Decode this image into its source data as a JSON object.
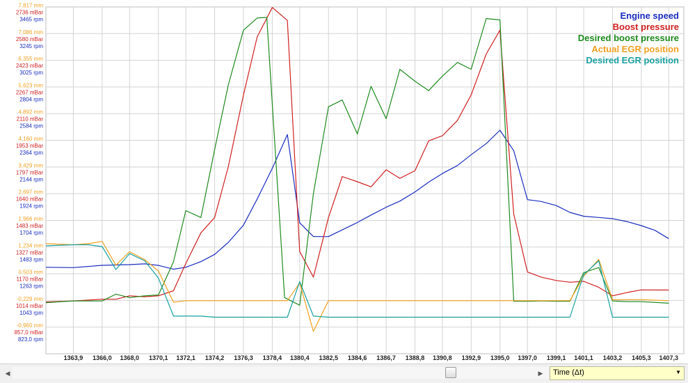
{
  "chart_data": {
    "type": "line",
    "x_ticks": [
      "1363,9",
      "1366,0",
      "1368,0",
      "1370,1",
      "1372,1",
      "1374,2",
      "1376,3",
      "1378,4",
      "1380,4",
      "1382,5",
      "1384,6",
      "1386,7",
      "1388,8",
      "1390,8",
      "1392,9",
      "1395,0",
      "1397,0",
      "1399,1",
      "1401,1",
      "1403,2",
      "1405,3",
      "1407,3"
    ],
    "xlim": [
      1361.9,
      1408.4
    ],
    "y_axes": [
      {
        "name": "EGR position",
        "unit": "mm",
        "color": "#f0a020",
        "ylim": [
          -1.682,
          7.817
        ],
        "ticks": [
          "7,817 mm",
          "7,086 mm",
          "6,355 mm",
          "5,623 mm",
          "4,892 mm",
          "4,160 mm",
          "3,429 mm",
          "2,697 mm",
          "1,966 mm",
          "1,234 mm",
          "0,503 mm",
          "-0,229 mm",
          "-0,960 mm"
        ]
      },
      {
        "name": "Boost pressure",
        "unit": "mBar",
        "color": "#d02020",
        "ylim": [
          700.0,
          2736.0
        ],
        "ticks": [
          "2736 mBar",
          "2580 mBar",
          "2423 mBar",
          "2267 mBar",
          "2110 mBar",
          "1953 mBar",
          "1797 mBar",
          "1640 mBar",
          "1483 mBar",
          "1327 mBar",
          "1170 mBar",
          "1014 mBar",
          "857,0 mBar"
        ]
      },
      {
        "name": "Engine speed",
        "unit": "rpm",
        "color": "#1a2dbf",
        "ylim": [
          823.0,
          3465.0
        ],
        "ticks": [
          "3465 rpm",
          "3245 rpm",
          "3025 rpm",
          "2804 rpm",
          "2584 rpm",
          "2364 rpm",
          "2144 rpm",
          "1924 rpm",
          "1704 rpm",
          "1483 rpm",
          "1263 rpm",
          "1043 rpm",
          "823,0 rpm"
        ]
      }
    ],
    "legend_position": "top-right",
    "grid": true,
    "series": [
      {
        "name": "Engine speed",
        "color": "#1a2dbf",
        "axis": 2,
        "points": [
          [
            1361.9,
            1482
          ],
          [
            1363.9,
            1479
          ],
          [
            1366.0,
            1497
          ],
          [
            1368.0,
            1502
          ],
          [
            1369.1,
            1508
          ],
          [
            1370.1,
            1496
          ],
          [
            1371.2,
            1467
          ],
          [
            1372.1,
            1482
          ],
          [
            1373.2,
            1525
          ],
          [
            1374.2,
            1580
          ],
          [
            1375.2,
            1672
          ],
          [
            1376.3,
            1803
          ],
          [
            1377.3,
            2002
          ],
          [
            1378.4,
            2236
          ],
          [
            1379.5,
            2493
          ],
          [
            1380.4,
            1821
          ],
          [
            1381.4,
            1716
          ],
          [
            1382.5,
            1716
          ],
          [
            1383.5,
            1767
          ],
          [
            1384.6,
            1823
          ],
          [
            1385.6,
            1880
          ],
          [
            1386.7,
            1939
          ],
          [
            1387.7,
            1986
          ],
          [
            1388.8,
            2056
          ],
          [
            1389.8,
            2130
          ],
          [
            1390.8,
            2196
          ],
          [
            1391.9,
            2257
          ],
          [
            1392.9,
            2339
          ],
          [
            1394.0,
            2424
          ],
          [
            1395.0,
            2526
          ],
          [
            1396.0,
            2370
          ],
          [
            1397.0,
            1997
          ],
          [
            1398.0,
            1983
          ],
          [
            1399.1,
            1952
          ],
          [
            1400.1,
            1900
          ],
          [
            1401.1,
            1871
          ],
          [
            1402.2,
            1861
          ],
          [
            1403.2,
            1852
          ],
          [
            1404.3,
            1829
          ],
          [
            1405.3,
            1799
          ],
          [
            1406.3,
            1763
          ],
          [
            1407.3,
            1700
          ]
        ]
      },
      {
        "name": "Boost pressure",
        "color": "#d02020",
        "axis": 1,
        "points": [
          [
            1361.9,
            1004
          ],
          [
            1363.9,
            1010
          ],
          [
            1366.0,
            1020
          ],
          [
            1367.0,
            1020
          ],
          [
            1368.0,
            1040
          ],
          [
            1369.1,
            1035
          ],
          [
            1370.1,
            1040
          ],
          [
            1371.2,
            1070
          ],
          [
            1372.1,
            1230
          ],
          [
            1373.2,
            1410
          ],
          [
            1374.2,
            1500
          ],
          [
            1375.2,
            1800
          ],
          [
            1376.3,
            2220
          ],
          [
            1377.3,
            2560
          ],
          [
            1378.4,
            2733
          ],
          [
            1379.5,
            2657
          ],
          [
            1380.4,
            1300
          ],
          [
            1381.4,
            1150
          ],
          [
            1382.5,
            1500
          ],
          [
            1383.5,
            1740
          ],
          [
            1384.6,
            1710
          ],
          [
            1385.6,
            1680
          ],
          [
            1386.7,
            1780
          ],
          [
            1387.7,
            1730
          ],
          [
            1388.8,
            1775
          ],
          [
            1389.8,
            1950
          ],
          [
            1390.8,
            1980
          ],
          [
            1391.9,
            2070
          ],
          [
            1392.9,
            2220
          ],
          [
            1394.0,
            2460
          ],
          [
            1395.0,
            2600
          ],
          [
            1396.0,
            1520
          ],
          [
            1397.0,
            1180
          ],
          [
            1398.0,
            1150
          ],
          [
            1399.1,
            1130
          ],
          [
            1400.1,
            1120
          ],
          [
            1401.1,
            1125
          ],
          [
            1402.2,
            1090
          ],
          [
            1403.2,
            1040
          ],
          [
            1404.3,
            1060
          ],
          [
            1405.3,
            1075
          ],
          [
            1407.3,
            1074
          ]
        ]
      },
      {
        "name": "Desired boost pressure",
        "color": "#1e8a1e",
        "axis": 1,
        "points": [
          [
            1361.9,
            1000
          ],
          [
            1363.9,
            1010
          ],
          [
            1366.0,
            1010
          ],
          [
            1367.0,
            1050
          ],
          [
            1368.0,
            1030
          ],
          [
            1369.1,
            1040
          ],
          [
            1370.1,
            1045
          ],
          [
            1371.2,
            1240
          ],
          [
            1372.1,
            1540
          ],
          [
            1373.2,
            1500
          ],
          [
            1374.2,
            1900
          ],
          [
            1375.2,
            2280
          ],
          [
            1376.3,
            2600
          ],
          [
            1377.3,
            2671
          ],
          [
            1378.0,
            2675
          ],
          [
            1379.3,
            1030
          ],
          [
            1380.4,
            985
          ],
          [
            1381.4,
            1640
          ],
          [
            1382.5,
            2150
          ],
          [
            1383.5,
            2190
          ],
          [
            1384.6,
            1990
          ],
          [
            1385.6,
            2270
          ],
          [
            1386.7,
            2080
          ],
          [
            1387.7,
            2370
          ],
          [
            1388.8,
            2300
          ],
          [
            1389.8,
            2245
          ],
          [
            1390.8,
            2330
          ],
          [
            1391.9,
            2410
          ],
          [
            1392.9,
            2370
          ],
          [
            1394.0,
            2668
          ],
          [
            1395.0,
            2660
          ],
          [
            1396.0,
            1008
          ],
          [
            1397.0,
            1008
          ],
          [
            1398.0,
            1010
          ],
          [
            1399.1,
            1008
          ],
          [
            1400.1,
            1008
          ],
          [
            1401.1,
            1176
          ],
          [
            1402.2,
            1206
          ],
          [
            1403.2,
            1010
          ],
          [
            1404.3,
            1006
          ],
          [
            1405.3,
            1006
          ],
          [
            1407.3,
            997
          ]
        ]
      },
      {
        "name": "Actual EGR position",
        "color": "#f0a020",
        "axis": 0,
        "points": [
          [
            1361.9,
            1.334
          ],
          [
            1363.9,
            1.304
          ],
          [
            1365.0,
            1.334
          ],
          [
            1366.0,
            1.394
          ],
          [
            1367.0,
            0.745
          ],
          [
            1368.0,
            1.113
          ],
          [
            1369.1,
            0.894
          ],
          [
            1370.1,
            0.585
          ],
          [
            1371.2,
            -0.271
          ],
          [
            1372.1,
            -0.229
          ],
          [
            1373.2,
            -0.229
          ],
          [
            1374.2,
            -0.229
          ],
          [
            1375.2,
            -0.229
          ],
          [
            1376.3,
            -0.229
          ],
          [
            1377.3,
            -0.229
          ],
          [
            1378.4,
            -0.229
          ],
          [
            1379.5,
            -0.229
          ],
          [
            1380.4,
            0.26
          ],
          [
            1381.4,
            -1.07
          ],
          [
            1382.5,
            -0.229
          ],
          [
            1383.5,
            -0.229
          ],
          [
            1384.6,
            -0.229
          ],
          [
            1385.6,
            -0.229
          ],
          [
            1386.7,
            -0.229
          ],
          [
            1387.7,
            -0.229
          ],
          [
            1388.8,
            -0.229
          ],
          [
            1389.8,
            -0.229
          ],
          [
            1390.8,
            -0.229
          ],
          [
            1391.9,
            -0.229
          ],
          [
            1392.9,
            -0.229
          ],
          [
            1394.0,
            -0.229
          ],
          [
            1395.0,
            -0.229
          ],
          [
            1396.0,
            -0.229
          ],
          [
            1397.0,
            -0.229
          ],
          [
            1398.0,
            -0.229
          ],
          [
            1399.1,
            -0.229
          ],
          [
            1400.1,
            -0.229
          ],
          [
            1401.1,
            0.443
          ],
          [
            1402.2,
            0.904
          ],
          [
            1403.2,
            -0.199
          ],
          [
            1404.3,
            -0.199
          ],
          [
            1405.3,
            -0.199
          ],
          [
            1407.3,
            -0.229
          ]
        ]
      },
      {
        "name": "Desired EGR position",
        "color": "#1aa0a0",
        "axis": 0,
        "points": [
          [
            1361.9,
            1.275
          ],
          [
            1363.9,
            1.304
          ],
          [
            1365.0,
            1.304
          ],
          [
            1366.0,
            1.254
          ],
          [
            1367.0,
            0.624
          ],
          [
            1368.0,
            1.063
          ],
          [
            1369.1,
            0.864
          ],
          [
            1370.1,
            0.394
          ],
          [
            1371.2,
            -0.65
          ],
          [
            1372.1,
            -0.65
          ],
          [
            1373.2,
            -0.65
          ],
          [
            1374.2,
            -0.68
          ],
          [
            1375.2,
            -0.68
          ],
          [
            1376.3,
            -0.68
          ],
          [
            1377.3,
            -0.68
          ],
          [
            1378.4,
            -0.68
          ],
          [
            1379.5,
            -0.68
          ],
          [
            1380.4,
            0.294
          ],
          [
            1381.4,
            -0.65
          ],
          [
            1382.5,
            -0.68
          ],
          [
            1383.5,
            -0.68
          ],
          [
            1384.6,
            -0.68
          ],
          [
            1385.6,
            -0.68
          ],
          [
            1386.7,
            -0.68
          ],
          [
            1387.7,
            -0.68
          ],
          [
            1388.8,
            -0.68
          ],
          [
            1389.8,
            -0.68
          ],
          [
            1390.8,
            -0.68
          ],
          [
            1391.9,
            -0.68
          ],
          [
            1392.9,
            -0.68
          ],
          [
            1394.0,
            -0.68
          ],
          [
            1395.0,
            -0.68
          ],
          [
            1396.0,
            -0.68
          ],
          [
            1397.0,
            -0.68
          ],
          [
            1398.0,
            -0.68
          ],
          [
            1399.1,
            -0.68
          ],
          [
            1400.1,
            -0.68
          ],
          [
            1401.1,
            0.483
          ],
          [
            1402.2,
            0.864
          ],
          [
            1403.2,
            -0.68
          ],
          [
            1404.3,
            -0.68
          ],
          [
            1405.3,
            -0.68
          ],
          [
            1407.3,
            -0.68
          ]
        ]
      }
    ]
  },
  "bottom_bar": {
    "time_select_value": "Time (Δt)",
    "scroll_left_glyph": "◀",
    "scroll_right_glyph": "▶",
    "dropdown_glyph": "▼"
  }
}
